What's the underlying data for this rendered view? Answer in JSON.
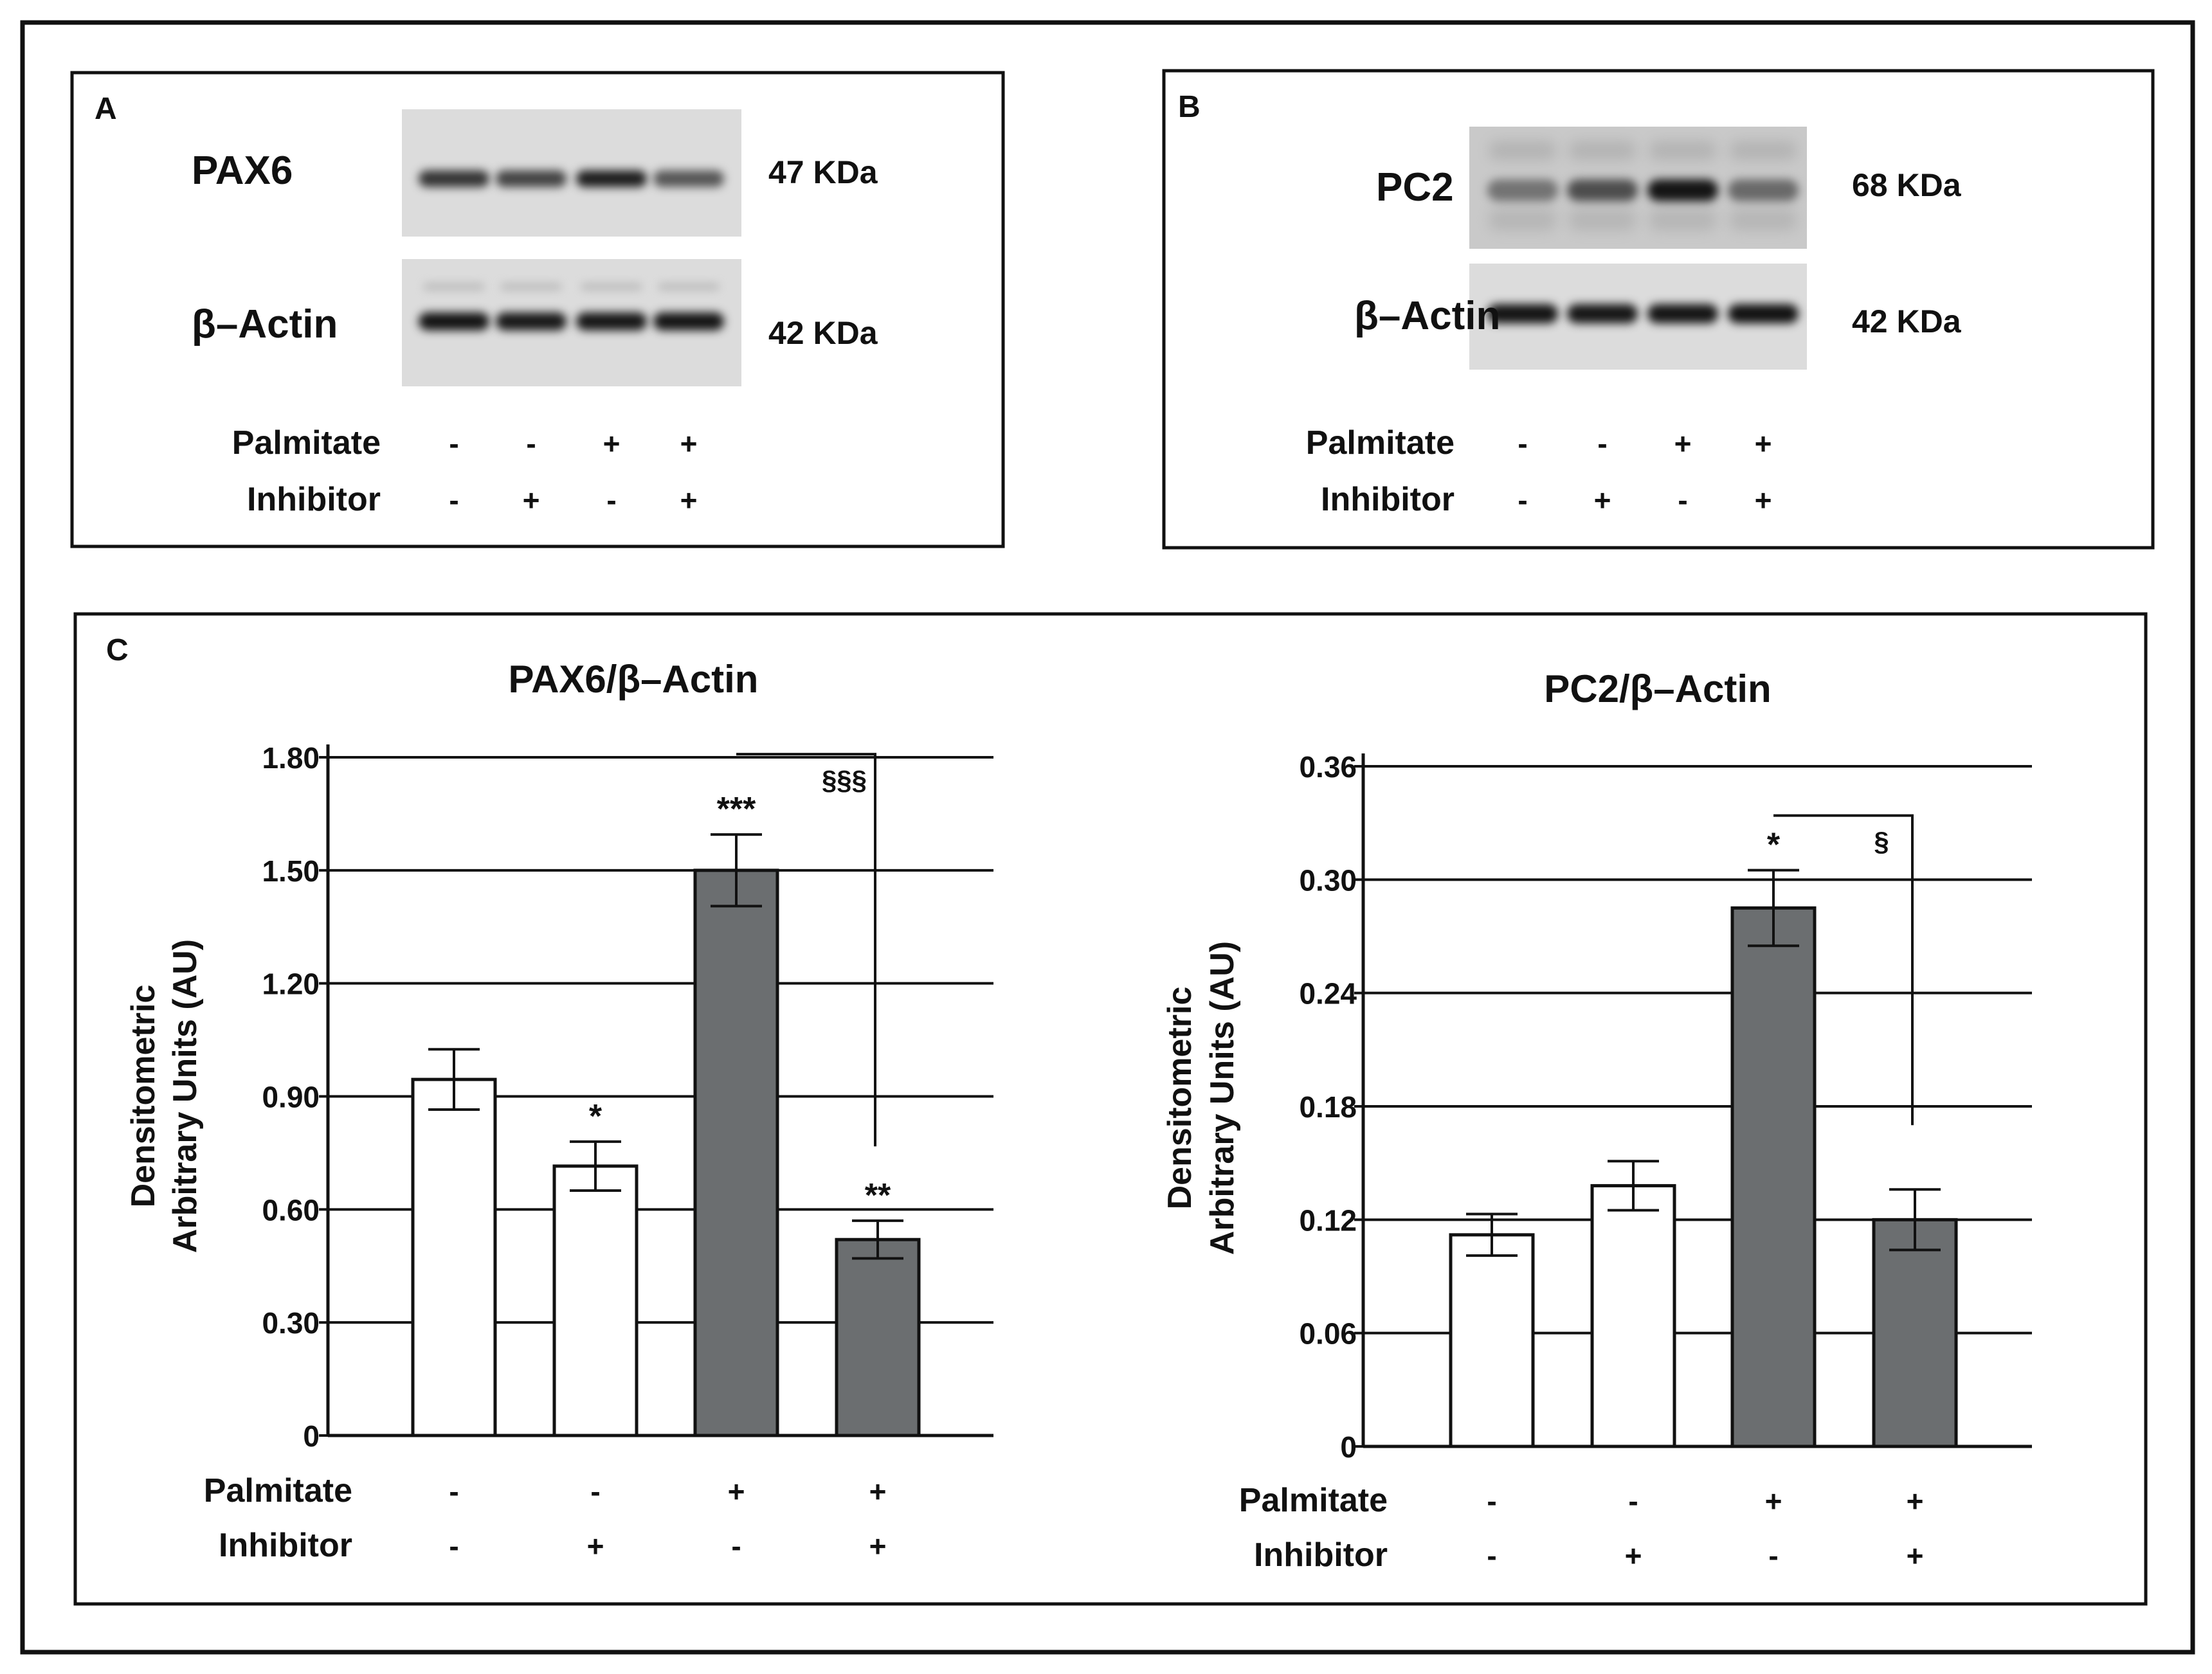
{
  "panels": {
    "A": {
      "letter": "A",
      "blots": [
        {
          "protein": "PAX6",
          "size": "47 KDa",
          "band_intensities": [
            0.78,
            0.7,
            0.9,
            0.6
          ]
        },
        {
          "protein": "β–Actin",
          "size": "42 KDa",
          "band_intensities": [
            0.95,
            0.92,
            0.93,
            0.94
          ]
        }
      ],
      "conditions": {
        "palmitate_label": "Palmitate",
        "inhibitor_label": "Inhibitor",
        "palmitate": [
          "-",
          "-",
          "+",
          "+"
        ],
        "inhibitor": [
          "-",
          "+",
          "-",
          "+"
        ]
      }
    },
    "B": {
      "letter": "B",
      "blots": [
        {
          "protein": "PC2",
          "size": "68 KDa",
          "band_intensities": [
            0.45,
            0.65,
            0.95,
            0.5
          ]
        },
        {
          "protein": "β–Actin",
          "size": "42 KDa",
          "band_intensities": [
            0.95,
            0.93,
            0.94,
            0.96
          ]
        }
      ],
      "conditions": {
        "palmitate_label": "Palmitate",
        "inhibitor_label": "Inhibitor",
        "palmitate": [
          "-",
          "-",
          "+",
          "+"
        ],
        "inhibitor": [
          "-",
          "+",
          "-",
          "+"
        ]
      }
    },
    "C": {
      "letter": "C"
    }
  },
  "chart_data": [
    {
      "type": "bar",
      "title": "PAX6/β–Actin",
      "ylabel_lines": [
        "Densitometric",
        "Arbitrary Units (AU)"
      ],
      "ylim": [
        0,
        1.8
      ],
      "yticks": [
        0,
        0.3,
        0.6,
        0.9,
        1.2,
        1.5,
        1.8
      ],
      "yticklabels": [
        "0",
        "0.30",
        "0.60",
        "0.90",
        "1.20",
        "1.50",
        "1.80"
      ],
      "values": [
        0.945,
        0.715,
        1.5,
        0.52
      ],
      "errors": [
        0.08,
        0.065,
        0.095,
        0.05
      ],
      "bar_colors": [
        "#ffffff",
        "#ffffff",
        "#6b6e70",
        "#6b6e70"
      ],
      "stars": [
        "",
        "*",
        "***",
        "**"
      ],
      "comparison": {
        "from": 2,
        "to": 3,
        "label": "§§§"
      },
      "palmitate_label": "Palmitate",
      "inhibitor_label": "Inhibitor",
      "palmitate": [
        "-",
        "-",
        "+",
        "+"
      ],
      "inhibitor": [
        "-",
        "+",
        "-",
        "+"
      ]
    },
    {
      "type": "bar",
      "title": "PC2/β–Actin",
      "ylabel_lines": [
        "Densitometric",
        "Arbitrary Units (AU)"
      ],
      "ylim": [
        0,
        0.36
      ],
      "yticks": [
        0,
        0.06,
        0.12,
        0.18,
        0.24,
        0.3,
        0.36
      ],
      "yticklabels": [
        "0",
        "0.06",
        "0.12",
        "0.18",
        "0.24",
        "0.30",
        "0.36"
      ],
      "values": [
        0.112,
        0.138,
        0.285,
        0.12
      ],
      "errors": [
        0.011,
        0.013,
        0.02,
        0.016
      ],
      "bar_colors": [
        "#ffffff",
        "#ffffff",
        "#6b6e70",
        "#6b6e70"
      ],
      "stars": [
        "",
        "",
        "*",
        ""
      ],
      "comparison": {
        "from": 2,
        "to": 3,
        "label": "§"
      },
      "palmitate_label": "Palmitate",
      "inhibitor_label": "Inhibitor",
      "palmitate": [
        "-",
        "-",
        "+",
        "+"
      ],
      "inhibitor": [
        "-",
        "+",
        "-",
        "+"
      ]
    }
  ]
}
